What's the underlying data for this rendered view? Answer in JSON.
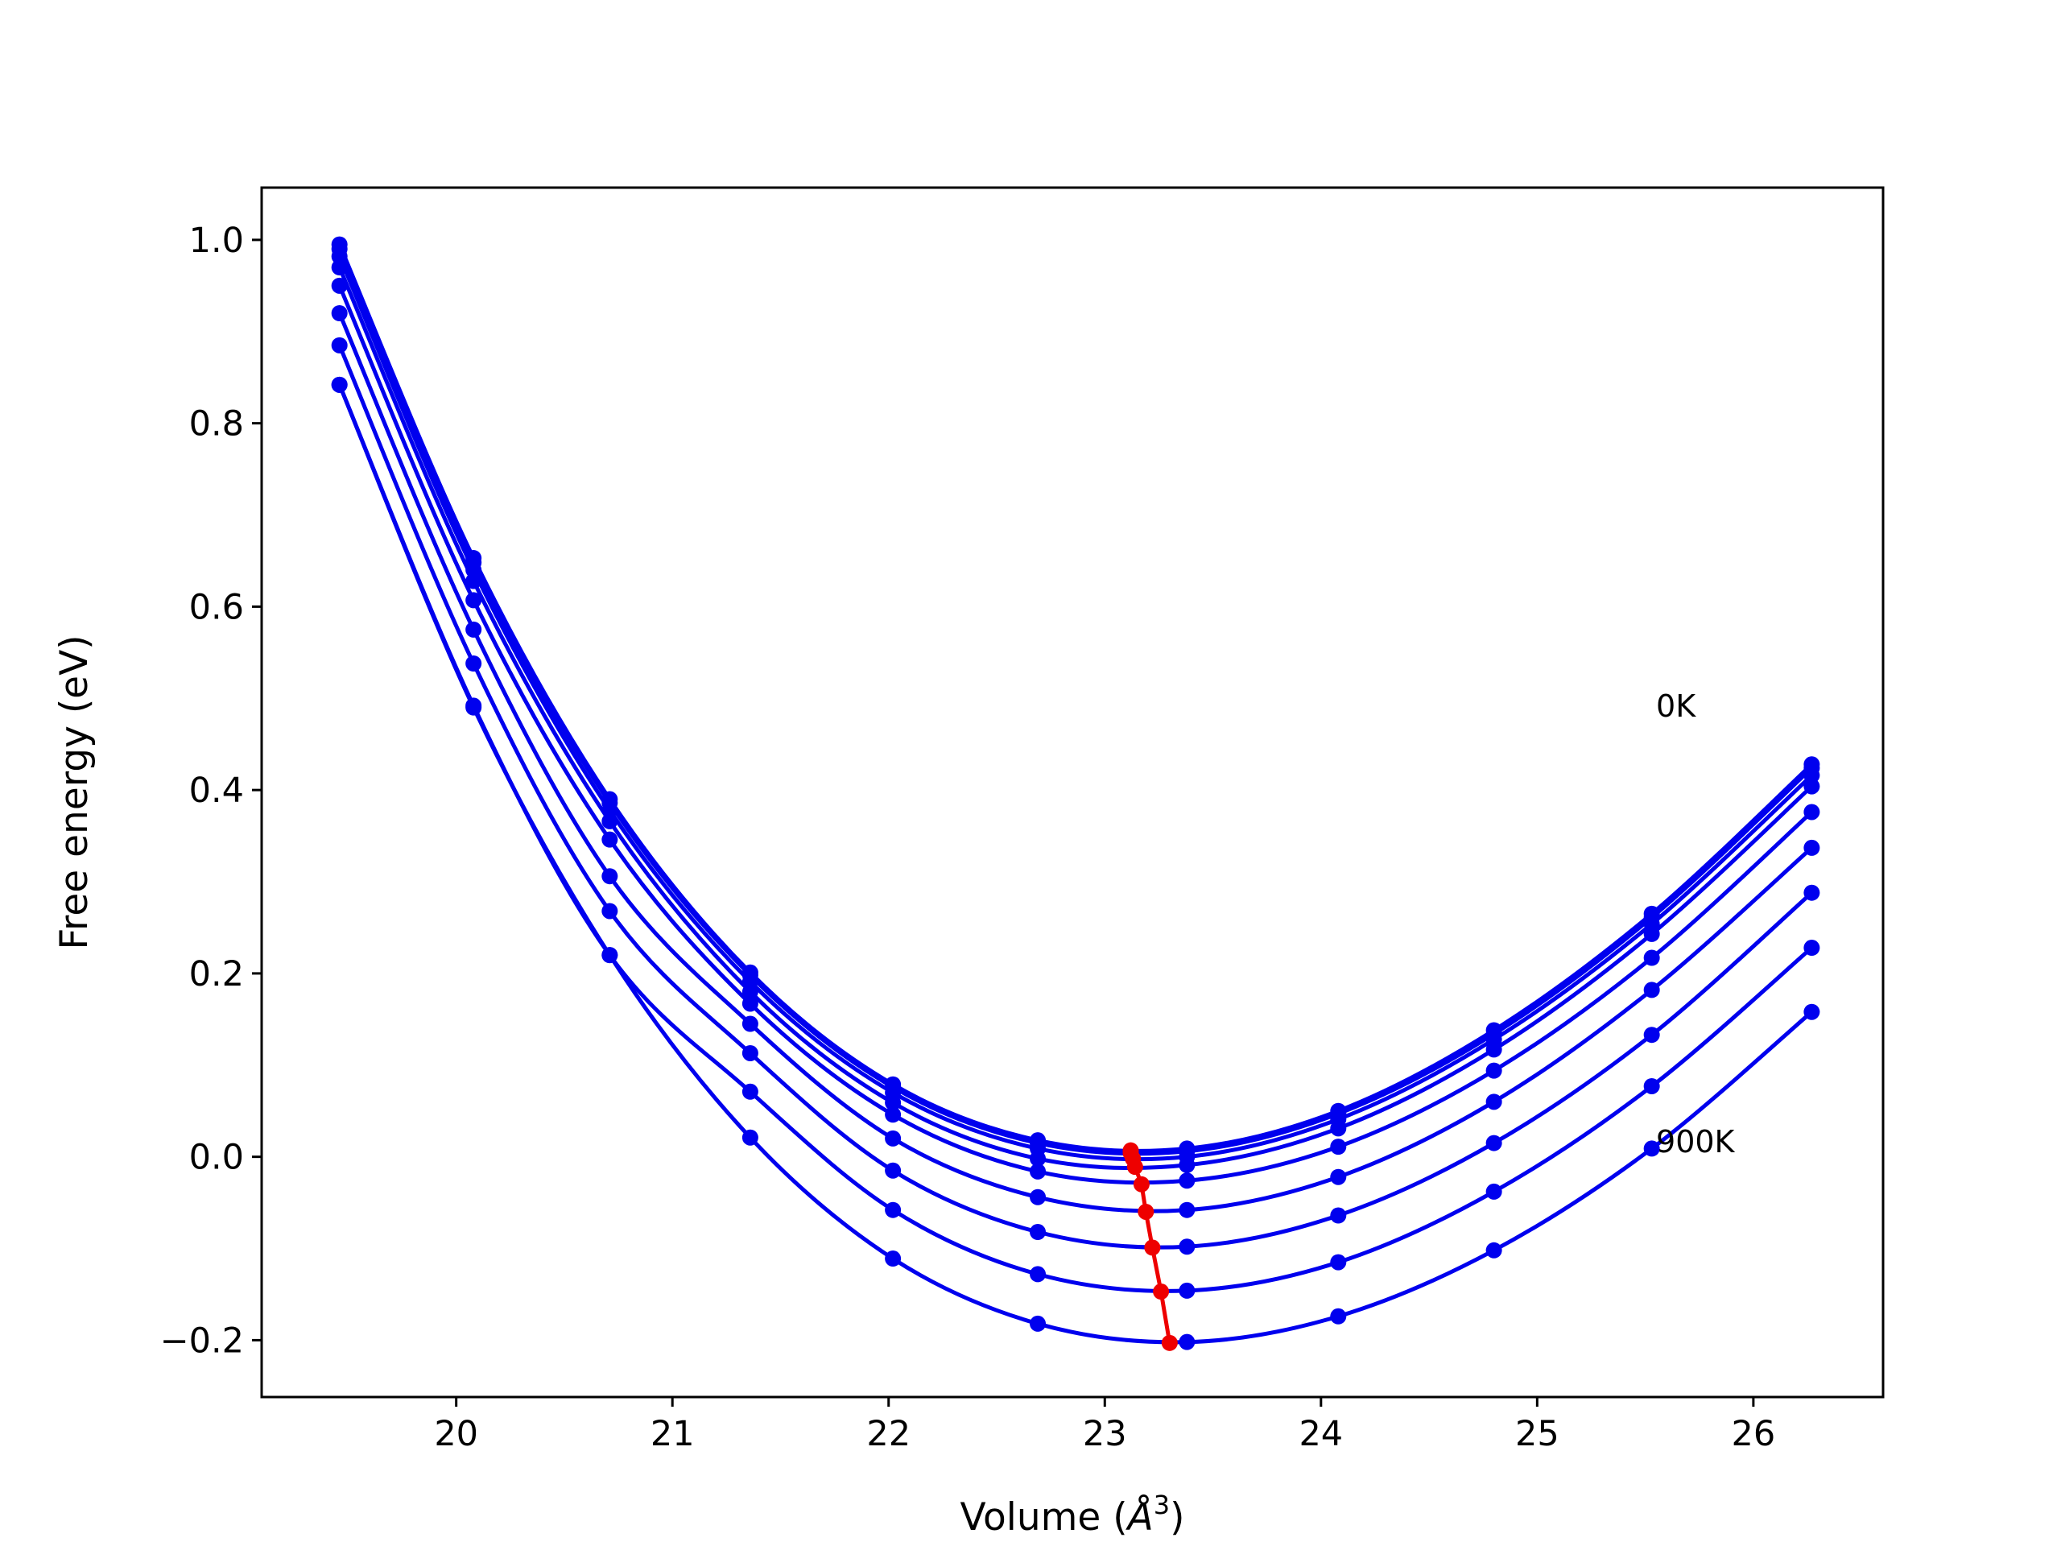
{
  "chart_data": {
    "type": "line",
    "title": "",
    "xlabel": "Volume ($\\AA^3$)",
    "xlabel_main": "Volume (",
    "xlabel_unit": "Å",
    "xlabel_exp": "3",
    "xlabel_close": ")",
    "ylabel": "Free energy (eV)",
    "xlim": [
      19.1,
      26.6
    ],
    "ylim": [
      -0.262,
      1.057
    ],
    "xticks": [
      20,
      21,
      22,
      23,
      24,
      25,
      26
    ],
    "yticks": [
      -0.2,
      0.0,
      0.2,
      0.4,
      0.6,
      0.8,
      1.0
    ],
    "ytick_labels": [
      "−0.2",
      "0.0",
      "0.2",
      "0.4",
      "0.6",
      "0.8",
      "1.0"
    ],
    "grid": false,
    "annotations": [
      {
        "text": "0K",
        "x": 25.55,
        "y": 0.48
      },
      {
        "text": "900K",
        "x": 25.55,
        "y": 0.005
      }
    ],
    "series_color": "#0000ee",
    "minima_color": "#ee0000",
    "volumes": [
      19.46,
      20.08,
      20.71,
      21.36,
      22.02,
      22.69,
      23.38,
      24.08,
      24.8,
      25.53,
      26.27
    ],
    "series": [
      {
        "values": [
          0.995,
          0.653,
          0.39,
          0.201,
          0.079,
          0.018,
          0.009,
          0.05,
          0.138,
          0.265,
          0.428
        ],
        "min": {
          "x": 23.12,
          "y": 0.007
        }
      },
      {
        "values": [
          0.99,
          0.648,
          0.386,
          0.198,
          0.076,
          0.015,
          0.006,
          0.047,
          0.134,
          0.261,
          0.424
        ],
        "min": {
          "x": 23.12,
          "y": 0.004
        }
      },
      {
        "values": [
          0.982,
          0.64,
          0.378,
          0.191,
          0.07,
          0.009,
          0.0,
          0.041,
          0.128,
          0.254,
          0.416
        ],
        "min": {
          "x": 23.13,
          "y": -0.002
        }
      },
      {
        "values": [
          0.97,
          0.628,
          0.366,
          0.18,
          0.059,
          -0.002,
          -0.009,
          0.031,
          0.117,
          0.243,
          0.404
        ],
        "min": {
          "x": 23.14,
          "y": -0.011
        }
      },
      {
        "values": [
          0.95,
          0.607,
          0.346,
          0.167,
          0.046,
          -0.016,
          -0.026,
          0.011,
          0.094,
          0.217,
          0.376
        ],
        "min": {
          "x": 23.17,
          "y": -0.03
        }
      },
      {
        "values": [
          0.92,
          0.575,
          0.306,
          0.145,
          0.02,
          -0.044,
          -0.058,
          -0.022,
          0.06,
          0.182,
          0.337
        ],
        "min": {
          "x": 23.19,
          "y": -0.06
        }
      },
      {
        "values": [
          0.885,
          0.538,
          0.268,
          0.113,
          -0.015,
          -0.082,
          -0.098,
          -0.064,
          0.015,
          0.133,
          0.288
        ],
        "min": {
          "x": 23.22,
          "y": -0.099
        }
      },
      {
        "values": [
          0.842,
          0.492,
          0.22,
          0.071,
          -0.058,
          -0.128,
          -0.146,
          -0.115,
          -0.038,
          0.077,
          0.228
        ],
        "min": {
          "x": 23.26,
          "y": -0.147
        }
      },
      {
        "values": [
          0.842,
          0.49,
          0.22,
          0.021,
          -0.111,
          -0.182,
          -0.202,
          -0.174,
          -0.102,
          0.009,
          0.158
        ],
        "min": {
          "x": 23.3,
          "y": -0.203
        }
      }
    ]
  }
}
